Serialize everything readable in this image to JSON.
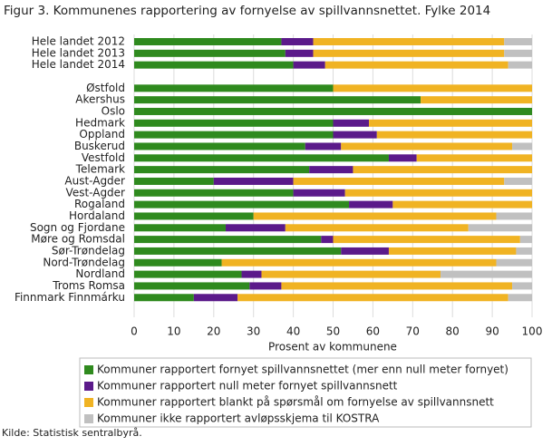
{
  "chart_data": {
    "type": "stacked-barh",
    "title": "Figur 3. Kommunenes rapportering av fornyelse av spillvannsnettet. Fylke 2014",
    "x_label": "Prosent av kommunene",
    "source": "Kilde: Statistisk sentralbyrå.",
    "categories": [
      "Hele landet 2012",
      "Hele landet 2013",
      "Hele landet 2014",
      null,
      "Østfold",
      "Akershus",
      "Oslo",
      "Hedmark",
      "Oppland",
      "Buskerud",
      "Vestfold",
      "Telemark",
      "Aust-Agder",
      "Vest-Agder",
      "Rogaland",
      "Hordaland",
      "Sogn og Fjordane",
      "Møre og Romsdal",
      "Sør-Trøndelag",
      "Nord-Trøndelag",
      "Nordland",
      "Troms Romsa",
      "Finnmark Finnmárku"
    ],
    "series": [
      {
        "name": "Kommuner rapportert fornyet spillvannsnettet (mer enn null meter fornyet)",
        "color": "#2f8a1e",
        "values": [
          37,
          38,
          40,
          null,
          50,
          72,
          100,
          50,
          50,
          43,
          64,
          44,
          20,
          40,
          54,
          30,
          23,
          47,
          52,
          22,
          27,
          29,
          15
        ]
      },
      {
        "name": "Kommuner rapportert null meter fornyet spillvannsnett",
        "color": "#5b1a8a",
        "values": [
          8,
          7,
          8,
          null,
          0,
          0,
          0,
          9,
          11,
          9,
          7,
          11,
          20,
          13,
          11,
          0,
          15,
          3,
          12,
          0,
          5,
          8,
          11
        ]
      },
      {
        "name": "Kommuner rapportert blankt på spørsmål om fornyelse av spillvannsnett",
        "color": "#f0b323",
        "values": [
          48,
          48,
          46,
          null,
          50,
          28,
          0,
          41,
          39,
          43,
          29,
          45,
          53,
          47,
          35,
          61,
          46,
          47,
          32,
          69,
          45,
          58,
          68
        ]
      },
      {
        "name": "Kommuner ikke rapportert avløpsskjema til KOSTRA",
        "color": "#c0c0c0",
        "values": [
          7,
          7,
          6,
          null,
          0,
          0,
          0,
          0,
          0,
          5,
          0,
          0,
          7,
          0,
          0,
          9,
          16,
          3,
          4,
          9,
          23,
          5,
          6
        ]
      }
    ],
    "xlim": [
      0,
      100
    ],
    "xticks": [
      0,
      10,
      20,
      30,
      40,
      50,
      60,
      70,
      80,
      90,
      100
    ],
    "grid": true
  }
}
